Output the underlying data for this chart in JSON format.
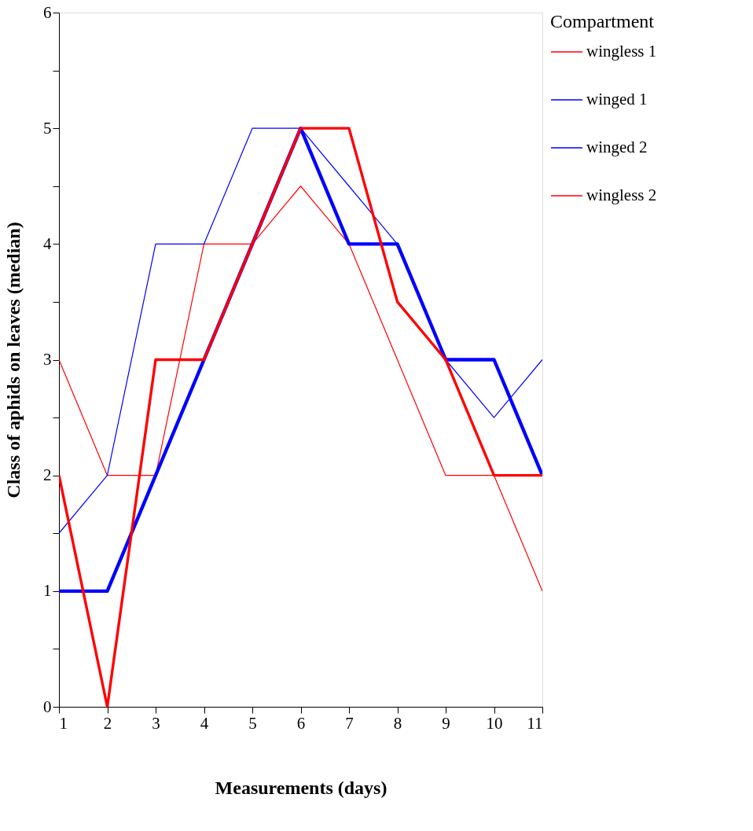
{
  "chart_data": {
    "type": "line",
    "xlabel": "Measurements (days)",
    "ylabel": "Class of aphids on leaves (median)",
    "legend_title": "Compartment",
    "x": [
      1,
      2,
      3,
      4,
      5,
      6,
      7,
      8,
      9,
      10,
      11
    ],
    "series": [
      {
        "name": "wingless 1",
        "color": "#ff0000",
        "values": [
          3,
          2,
          2,
          4,
          4,
          4.5,
          4,
          3,
          2,
          2,
          1
        ]
      },
      {
        "name": "winged 1",
        "color": "#0000ff",
        "values": [
          1.5,
          2,
          4,
          4,
          5,
          5,
          4.5,
          4,
          3,
          2.5,
          3
        ]
      },
      {
        "name": "winged 2",
        "color": "#0000ff",
        "values": [
          1,
          1,
          2,
          3,
          4,
          5,
          4,
          4,
          3,
          3,
          2
        ]
      },
      {
        "name": "wingless 2",
        "color": "#ff0000",
        "values": [
          2,
          0,
          3,
          3,
          4,
          5,
          5,
          3.5,
          3,
          2,
          2
        ]
      }
    ],
    "xlim": [
      1,
      11
    ],
    "xticks": [
      1,
      2,
      3,
      4,
      5,
      6,
      7,
      8,
      9,
      10,
      11
    ],
    "ylim": [
      0,
      6
    ],
    "yticks": [
      0,
      {
        "value": 0.5,
        "label": null
      },
      1,
      {
        "value": 1.5,
        "label": null
      },
      2,
      {
        "value": 2.5,
        "label": null
      },
      3,
      {
        "value": 3.5,
        "label": null
      },
      4,
      {
        "value": 4.5,
        "label": null
      },
      5,
      {
        "value": 5.5,
        "label": null
      },
      6
    ],
    "grid": false,
    "legend": "right",
    "marker": "none",
    "line_style": "solid"
  }
}
